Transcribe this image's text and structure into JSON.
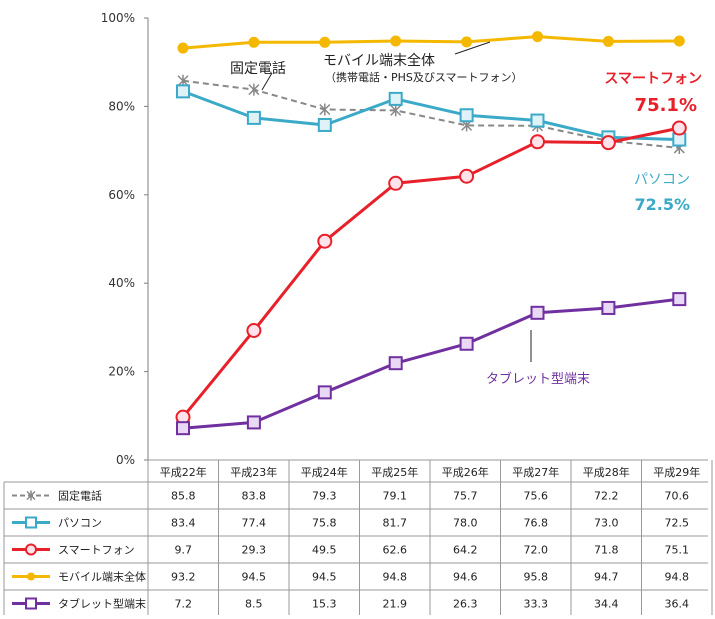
{
  "chart_data": {
    "type": "line",
    "categories": [
      "平成22年",
      "平成23年",
      "平成24年",
      "平成25年",
      "平成26年",
      "平成27年",
      "平成28年",
      "平成29年"
    ],
    "y_ticks": [
      "0%",
      "20%",
      "40%",
      "60%",
      "80%",
      "100%"
    ],
    "ylim": [
      0,
      100
    ],
    "grid": false,
    "legend": "table-bottom",
    "series": [
      {
        "name": "固定電話",
        "values": [
          85.8,
          83.8,
          79.3,
          79.1,
          75.7,
          75.6,
          72.2,
          70.6
        ],
        "values_text": [
          "85.8",
          "83.8",
          "79.3",
          "79.1",
          "75.7",
          "75.6",
          "72.2",
          "70.6"
        ],
        "color": "#888888",
        "marker": "star",
        "dashed": true
      },
      {
        "name": "パソコン",
        "values": [
          83.4,
          77.4,
          75.8,
          81.7,
          78.0,
          76.8,
          73.0,
          72.5
        ],
        "values_text": [
          "83.4",
          "77.4",
          "75.8",
          "81.7",
          "78.0",
          "76.8",
          "73.0",
          "72.5"
        ],
        "color": "#3aaac8",
        "marker": "square"
      },
      {
        "name": "スマートフォン",
        "values": [
          9.7,
          29.3,
          49.5,
          62.6,
          64.2,
          72.0,
          71.8,
          75.1
        ],
        "values_text": [
          "9.7",
          "29.3",
          "49.5",
          "62.6",
          "64.2",
          "72.0",
          "71.8",
          "75.1"
        ],
        "color": "#e8202a",
        "marker": "circle"
      },
      {
        "name": "モバイル端末全体",
        "values": [
          93.2,
          94.5,
          94.5,
          94.8,
          94.6,
          95.8,
          94.7,
          94.8
        ],
        "values_text": [
          "93.2",
          "94.5",
          "94.5",
          "94.8",
          "94.6",
          "95.8",
          "94.7",
          "94.8"
        ],
        "color": "#f5b800",
        "marker": "dot"
      },
      {
        "name": "タブレット型端末",
        "values": [
          7.2,
          8.5,
          15.3,
          21.9,
          26.3,
          33.3,
          34.4,
          36.4
        ],
        "values_text": [
          "7.2",
          "8.5",
          "15.3",
          "21.9",
          "26.3",
          "33.3",
          "34.4",
          "36.4"
        ],
        "color": "#7030a0",
        "marker": "square"
      }
    ],
    "annotations": {
      "landline": "固定電話",
      "mobile": "モバイル端末全体",
      "mobile_sub": "（携帯電話・PHS及びスマートフォン）",
      "smartphone": "スマートフォン",
      "smartphone_value": "75.1%",
      "pc": "パソコン",
      "pc_value": "72.5%",
      "tablet": "タブレット型端末"
    }
  }
}
